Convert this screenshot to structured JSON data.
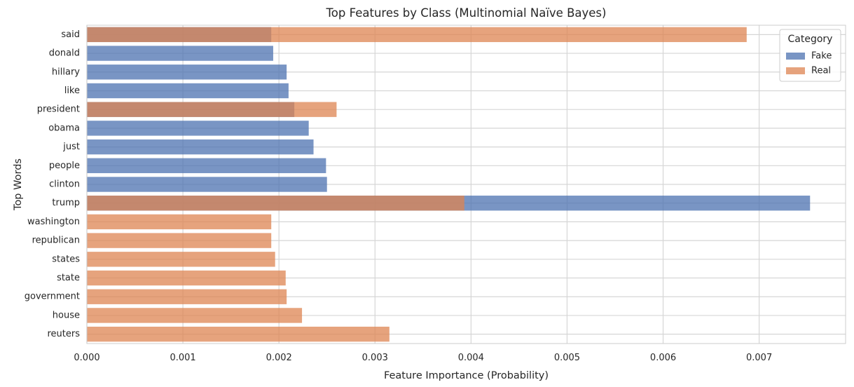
{
  "chart_data": {
    "type": "bar",
    "orientation": "horizontal",
    "title": "Top Features by Class (Multinomial Naïve Bayes)",
    "xlabel": "Feature Importance (Probability)",
    "ylabel": "Top Words",
    "xlim": [
      0,
      0.0079
    ],
    "xticks": [
      0,
      0.001,
      0.002,
      0.003,
      0.004,
      0.005,
      0.006,
      0.007
    ],
    "xtick_labels": [
      "0.000",
      "0.001",
      "0.002",
      "0.003",
      "0.004",
      "0.005",
      "0.006",
      "0.007"
    ],
    "categories": [
      "said",
      "donald",
      "hillary",
      "like",
      "president",
      "obama",
      "just",
      "people",
      "clinton",
      "trump",
      "washington",
      "republican",
      "states",
      "state",
      "government",
      "house",
      "reuters"
    ],
    "series": [
      {
        "name": "Fake",
        "color": "#4c72b0",
        "values": [
          0.00192,
          0.00194,
          0.00208,
          0.0021,
          0.00216,
          0.00231,
          0.00236,
          0.00249,
          0.0025,
          0.00753,
          null,
          null,
          null,
          null,
          null,
          null,
          null
        ]
      },
      {
        "name": "Real",
        "color": "#dd8452",
        "values": [
          0.00687,
          null,
          null,
          null,
          0.0026,
          null,
          null,
          null,
          null,
          0.00393,
          0.00192,
          0.00192,
          0.00196,
          0.00207,
          0.00208,
          0.00224,
          0.00315
        ]
      }
    ],
    "grid": true,
    "legend": {
      "title": "Category",
      "placement": "top-right"
    }
  }
}
